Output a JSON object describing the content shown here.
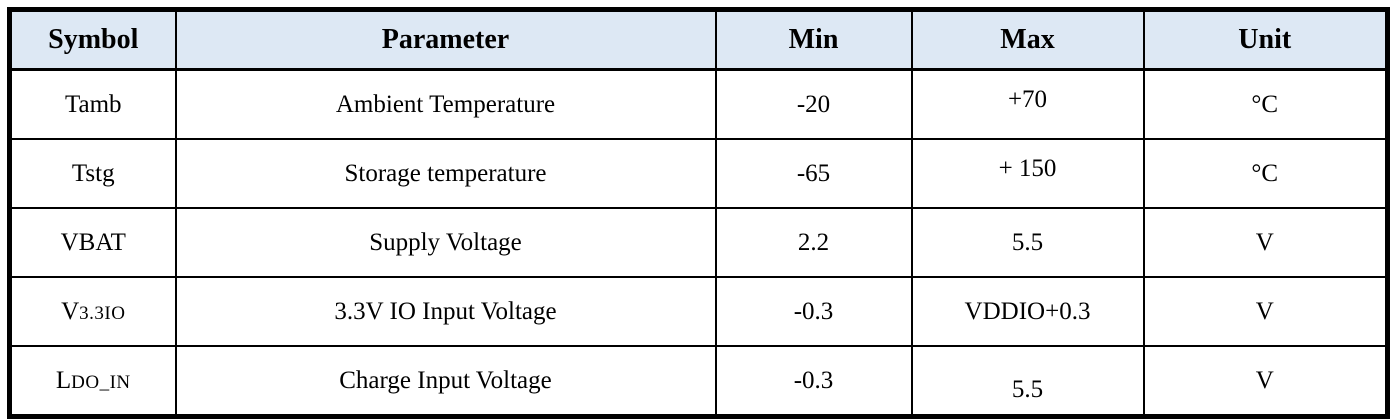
{
  "table": {
    "title_hint": "absolute-maximum-ratings",
    "headers": [
      "Symbol",
      "Parameter",
      "Min",
      "Max",
      "Unit"
    ],
    "rows": [
      {
        "symbol_main": "Tamb",
        "symbol_small": "",
        "parameter": "Ambient Temperature",
        "min": "-20",
        "max": "+70",
        "unit": "°C"
      },
      {
        "symbol_main": "Tstg",
        "symbol_small": "",
        "parameter": "Storage temperature",
        "min": "-65",
        "max": "+ 150",
        "unit": "°C"
      },
      {
        "symbol_main": "VBAT",
        "symbol_small": "",
        "parameter": "Supply Voltage",
        "min": "2.2",
        "max": "5.5",
        "unit": "V"
      },
      {
        "symbol_main": "V",
        "symbol_small": "3.3IO",
        "parameter": "3.3V IO Input Voltage",
        "min": "-0.3",
        "max": "VDDIO+0.3",
        "unit": "V"
      },
      {
        "symbol_main": "L",
        "symbol_small": "DO_IN",
        "parameter": "Charge Input Voltage",
        "min": "-0.3",
        "max": "5.5",
        "unit": "V"
      }
    ],
    "colors": {
      "header_bg": "#dde8f4",
      "border": "#000000",
      "text": "#000000"
    }
  }
}
